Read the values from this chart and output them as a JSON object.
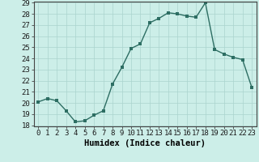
{
  "x": [
    0,
    1,
    2,
    3,
    4,
    5,
    6,
    7,
    8,
    9,
    10,
    11,
    12,
    13,
    14,
    15,
    16,
    17,
    18,
    19,
    20,
    21,
    22,
    23
  ],
  "y": [
    20.1,
    20.4,
    20.2,
    19.3,
    18.3,
    18.4,
    18.9,
    19.3,
    21.7,
    23.2,
    24.9,
    25.3,
    27.2,
    27.6,
    28.1,
    28.0,
    27.8,
    27.7,
    29.0,
    24.8,
    24.4,
    24.1,
    23.9,
    21.4
  ],
  "line_color": "#2d6e63",
  "marker_color": "#2d6e63",
  "bg_color": "#cceee8",
  "grid_color": "#aad4ce",
  "xlabel": "Humidex (Indice chaleur)",
  "ylim": [
    18,
    29
  ],
  "xlim": [
    -0.5,
    23.5
  ],
  "yticks": [
    18,
    19,
    20,
    21,
    22,
    23,
    24,
    25,
    26,
    27,
    28,
    29
  ],
  "xticks": [
    0,
    1,
    2,
    3,
    4,
    5,
    6,
    7,
    8,
    9,
    10,
    11,
    12,
    13,
    14,
    15,
    16,
    17,
    18,
    19,
    20,
    21,
    22,
    23
  ],
  "marker_size": 2.5,
  "line_width": 1.0,
  "tick_fontsize": 6.5,
  "xlabel_fontsize": 7.5
}
